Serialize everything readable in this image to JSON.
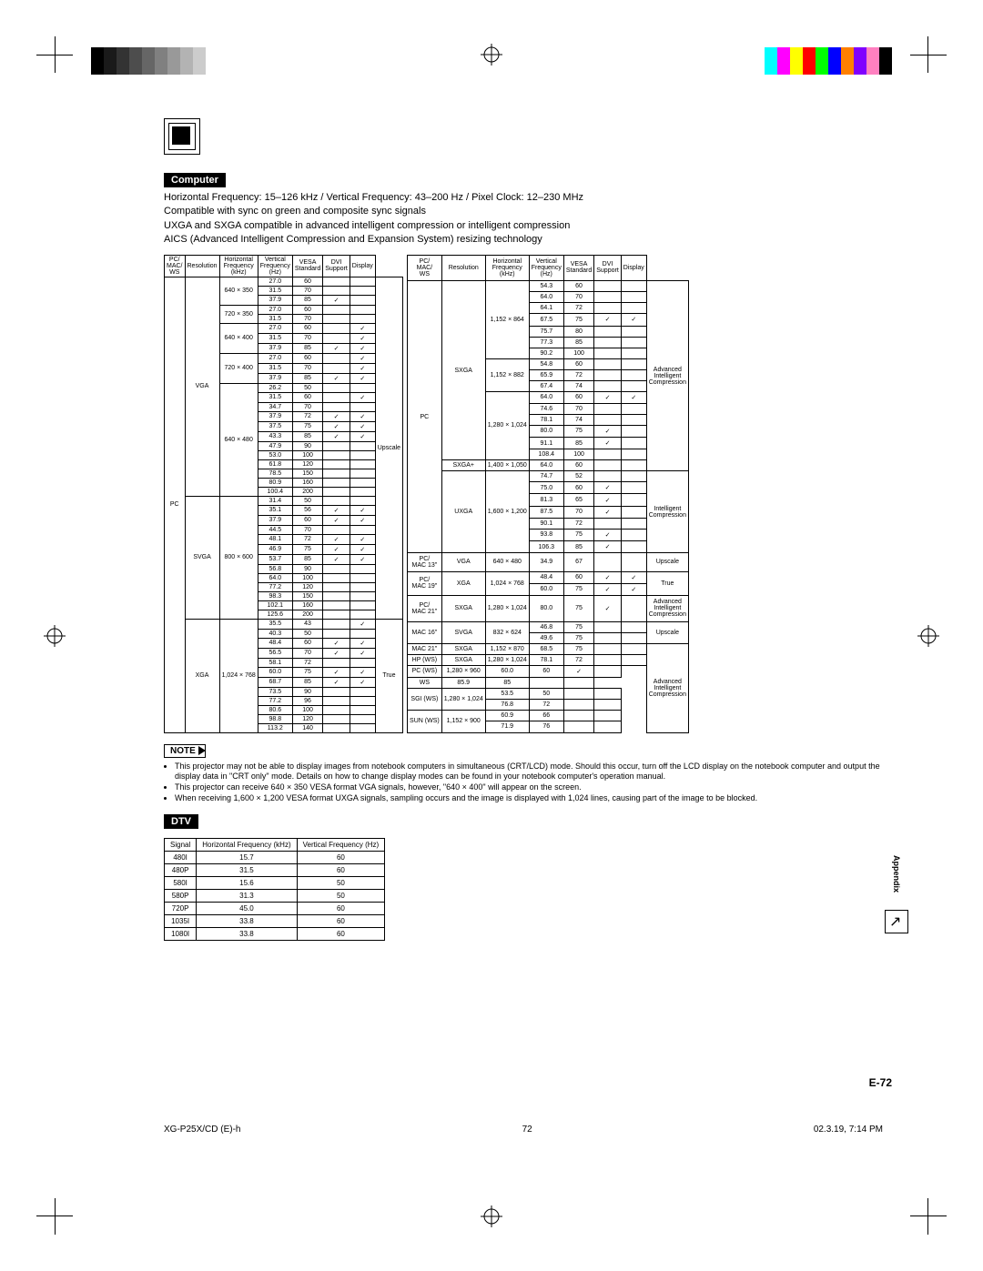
{
  "meta": {
    "page_number": "E-72",
    "footer_left": "XG-P25X/CD (E)-h",
    "footer_center": "72",
    "footer_right": "02.3.19, 7:14 PM",
    "appendix_label": "Appendix"
  },
  "colorbars": {
    "left": [
      "#000000",
      "#1a1a1a",
      "#333333",
      "#4d4d4d",
      "#666666",
      "#808080",
      "#999999",
      "#b3b3b3",
      "#cccccc",
      "#ffffff"
    ],
    "right": [
      "#00ffff",
      "#ff00ff",
      "#ffff00",
      "#ff0000",
      "#00ff00",
      "#0000ff",
      "#ff8000",
      "#8000ff",
      "#ff80c0",
      "#000000"
    ]
  },
  "sections": {
    "computer": {
      "tag": "Computer",
      "intro": [
        "Horizontal Frequency: 15–126 kHz / Vertical Frequency: 43–200 Hz / Pixel Clock: 12–230 MHz",
        "Compatible with sync on green and composite sync signals",
        "UXGA and SXGA compatible in advanced intelligent compression or intelligent compression",
        "AICS (Advanced Intelligent Compression and Expansion System) resizing technology"
      ],
      "headers": [
        "PC/\nMAC/\nWS",
        "Resolution",
        "Horizontal\nFrequency\n(kHz)",
        "Vertical\nFrequency\n(Hz)",
        "VESA\nStandard",
        "DVI\nSupport",
        "Display"
      ],
      "left_table": [
        {
          "sys": "PC",
          "std": "VGA",
          "res": "640 × 350",
          "rows": [
            [
              "27.0",
              "60",
              "",
              ""
            ],
            [
              "31.5",
              "70",
              "",
              ""
            ],
            [
              "37.9",
              "85",
              "✓",
              ""
            ]
          ],
          "disp": "Upscale"
        },
        {
          "res": "720 × 350",
          "rows": [
            [
              "27.0",
              "60",
              "",
              ""
            ],
            [
              "31.5",
              "70",
              "",
              ""
            ]
          ]
        },
        {
          "res": "640 × 400",
          "rows": [
            [
              "27.0",
              "60",
              "",
              "✓"
            ],
            [
              "31.5",
              "70",
              "",
              "✓"
            ],
            [
              "37.9",
              "85",
              "✓",
              "✓"
            ]
          ]
        },
        {
          "res": "720 × 400",
          "rows": [
            [
              "27.0",
              "60",
              "",
              "✓"
            ],
            [
              "31.5",
              "70",
              "",
              "✓"
            ],
            [
              "37.9",
              "85",
              "✓",
              "✓"
            ]
          ]
        },
        {
          "res": "640 × 480",
          "rows": [
            [
              "26.2",
              "50",
              "",
              ""
            ],
            [
              "31.5",
              "60",
              "",
              "✓"
            ],
            [
              "34.7",
              "70",
              "",
              ""
            ],
            [
              "37.9",
              "72",
              "✓",
              "✓"
            ],
            [
              "37.5",
              "75",
              "✓",
              "✓"
            ],
            [
              "43.3",
              "85",
              "✓",
              "✓"
            ],
            [
              "47.9",
              "90",
              "",
              ""
            ],
            [
              "53.0",
              "100",
              "",
              ""
            ],
            [
              "61.8",
              "120",
              "",
              ""
            ],
            [
              "78.5",
              "150",
              "",
              ""
            ],
            [
              "80.9",
              "160",
              "",
              ""
            ],
            [
              "100.4",
              "200",
              "",
              ""
            ]
          ]
        },
        {
          "std": "SVGA",
          "res": "800 × 600",
          "rows": [
            [
              "31.4",
              "50",
              "",
              ""
            ],
            [
              "35.1",
              "56",
              "✓",
              "✓"
            ],
            [
              "37.9",
              "60",
              "✓",
              "✓"
            ],
            [
              "44.5",
              "70",
              "",
              ""
            ],
            [
              "48.1",
              "72",
              "✓",
              "✓"
            ],
            [
              "46.9",
              "75",
              "✓",
              "✓"
            ],
            [
              "53.7",
              "85",
              "✓",
              "✓"
            ],
            [
              "56.8",
              "90",
              "",
              ""
            ],
            [
              "64.0",
              "100",
              "",
              ""
            ],
            [
              "77.2",
              "120",
              "",
              ""
            ],
            [
              "98.3",
              "150",
              "",
              ""
            ],
            [
              "102.1",
              "160",
              "",
              ""
            ],
            [
              "125.6",
              "200",
              "",
              ""
            ]
          ]
        },
        {
          "std": "XGA",
          "res": "1,024 × 768",
          "rows": [
            [
              "35.5",
              "43",
              "",
              "✓"
            ],
            [
              "40.3",
              "50",
              "",
              ""
            ],
            [
              "48.4",
              "60",
              "✓",
              "✓"
            ],
            [
              "56.5",
              "70",
              "✓",
              "✓"
            ],
            [
              "58.1",
              "72",
              "",
              ""
            ],
            [
              "60.0",
              "75",
              "✓",
              "✓"
            ],
            [
              "68.7",
              "85",
              "✓",
              "✓"
            ],
            [
              "73.5",
              "90",
              "",
              ""
            ],
            [
              "77.2",
              "96",
              "",
              ""
            ],
            [
              "80.6",
              "100",
              "",
              ""
            ],
            [
              "98.8",
              "120",
              "",
              ""
            ],
            [
              "113.2",
              "140",
              "",
              ""
            ]
          ],
          "disp": "True"
        }
      ],
      "right_table": [
        {
          "sys": "PC",
          "std": "SXGA",
          "res": "1,152 × 864",
          "rows": [
            [
              "54.3",
              "60",
              "",
              ""
            ],
            [
              "64.0",
              "70",
              "",
              ""
            ],
            [
              "64.1",
              "72",
              "",
              ""
            ],
            [
              "67.5",
              "75",
              "✓",
              "✓"
            ],
            [
              "75.7",
              "80",
              "",
              ""
            ],
            [
              "77.3",
              "85",
              "",
              ""
            ],
            [
              "90.2",
              "100",
              "",
              ""
            ]
          ],
          "disp": "Advanced\nIntelligent\nCompression"
        },
        {
          "res": "1,152 × 882",
          "rows": [
            [
              "54.8",
              "60",
              "",
              ""
            ],
            [
              "65.9",
              "72",
              "",
              ""
            ],
            [
              "67.4",
              "74",
              "",
              ""
            ]
          ]
        },
        {
          "res": "1,280 × 1,024",
          "rows": [
            [
              "64.0",
              "60",
              "✓",
              "✓"
            ],
            [
              "74.6",
              "70",
              "",
              ""
            ],
            [
              "78.1",
              "74",
              "",
              ""
            ],
            [
              "80.0",
              "75",
              "✓",
              ""
            ],
            [
              "91.1",
              "85",
              "✓",
              ""
            ],
            [
              "108.4",
              "100",
              "",
              ""
            ]
          ]
        },
        {
          "std": "SXGA+",
          "res": "1,400 × 1,050",
          "rows": [
            [
              "64.0",
              "60",
              "",
              ""
            ]
          ]
        },
        {
          "std": "UXGA",
          "res": "1,600 × 1,200",
          "rows": [
            [
              "74.7",
              "52",
              "",
              ""
            ],
            [
              "75.0",
              "60",
              "✓",
              ""
            ],
            [
              "81.3",
              "65",
              "✓",
              ""
            ],
            [
              "87.5",
              "70",
              "✓",
              ""
            ],
            [
              "90.1",
              "72",
              "",
              ""
            ],
            [
              "93.8",
              "75",
              "✓",
              ""
            ],
            [
              "106.3",
              "85",
              "✓",
              ""
            ]
          ],
          "disp": "Intelligent\nCompression"
        },
        {
          "sys": "PC/\nMAC 13\"",
          "std": "VGA",
          "res": "640 × 480",
          "rows": [
            [
              "34.9",
              "67",
              "",
              ""
            ]
          ],
          "disp": "Upscale"
        },
        {
          "sys": "PC/\nMAC 19\"",
          "std": "XGA",
          "res": "1,024 × 768",
          "rows": [
            [
              "48.4",
              "60",
              "✓",
              "✓"
            ],
            [
              "60.0",
              "75",
              "✓",
              "✓"
            ]
          ],
          "disp": "True"
        },
        {
          "sys": "PC/\nMAC 21\"",
          "std": "SXGA",
          "res": "1,280 × 1,024",
          "rows": [
            [
              "80.0",
              "75",
              "✓",
              ""
            ]
          ],
          "disp": "Advanced\nIntelligent\nCompression"
        },
        {
          "sys": "MAC 16\"",
          "std": "SVGA",
          "res": "832 × 624",
          "rows": [
            [
              "46.8",
              "75",
              "",
              ""
            ],
            [
              "49.6",
              "75",
              "",
              ""
            ]
          ],
          "disp": "Upscale"
        },
        {
          "sys": "MAC 21\"",
          "std": "SXGA",
          "res": "1,152 × 870",
          "rows": [
            [
              "68.5",
              "75",
              "",
              ""
            ]
          ],
          "disp": "Advanced\nIntelligent\nCompression"
        },
        {
          "sys": "HP (WS)",
          "std": "SXGA",
          "res": "1,280 × 1,024",
          "rows": [
            [
              "78.1",
              "72",
              "",
              ""
            ]
          ]
        },
        {
          "sys": "PC (WS)",
          "res": "1,280 × 960",
          "rows": [
            [
              "60.0",
              "60",
              "✓",
              ""
            ]
          ]
        },
        {
          "sys": "WS",
          "rows": [
            [
              "85.9",
              "85",
              "",
              ""
            ]
          ]
        },
        {
          "sys": "SGI (WS)",
          "res": "1,280 × 1,024",
          "rows": [
            [
              "53.5",
              "50",
              "",
              ""
            ],
            [
              "76.8",
              "72",
              "",
              ""
            ]
          ]
        },
        {
          "sys": "SUN (WS)",
          "res": "1,152 × 900",
          "rows": [
            [
              "60.9",
              "66",
              "",
              ""
            ],
            [
              "71.9",
              "76",
              "",
              ""
            ]
          ]
        }
      ]
    },
    "note": {
      "tag": "NOTE",
      "items": [
        "This projector may not be able to display images from notebook computers in simultaneous (CRT/LCD) mode. Should this occur, turn off the LCD display on the notebook computer and output the display data in \"CRT only\" mode. Details on how to change display modes can be found in your notebook computer's operation manual.",
        "This projector can receive 640 × 350 VESA format VGA signals, however, \"640 × 400\" will appear on the screen.",
        "When receiving 1,600 × 1,200 VESA format UXGA signals, sampling occurs and the image is displayed with 1,024 lines, causing part of the image to be blocked."
      ]
    },
    "dtv": {
      "tag": "DTV",
      "headers": [
        "Signal",
        "Horizontal Frequency (kHz)",
        "Vertical Frequency (Hz)"
      ],
      "rows": [
        [
          "480I",
          "15.7",
          "60"
        ],
        [
          "480P",
          "31.5",
          "60"
        ],
        [
          "580I",
          "15.6",
          "50"
        ],
        [
          "580P",
          "31.3",
          "50"
        ],
        [
          "720P",
          "45.0",
          "60"
        ],
        [
          "1035I",
          "33.8",
          "60"
        ],
        [
          "1080I",
          "33.8",
          "60"
        ]
      ]
    }
  }
}
